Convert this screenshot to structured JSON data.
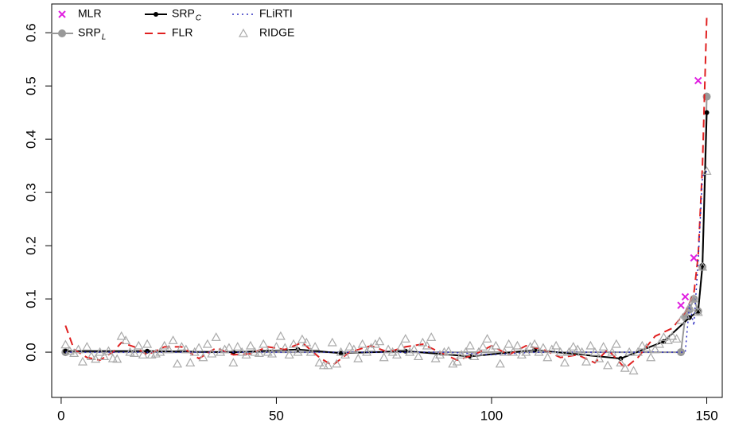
{
  "chart_data": {
    "type": "line",
    "xlim": [
      -2.2,
      153.6
    ],
    "ylim": [
      -0.085,
      0.654
    ],
    "xticks": [
      0,
      50,
      100,
      150
    ],
    "yticks": [
      {
        "value": 0,
        "label": "0.0"
      },
      0.1,
      0.2,
      0.3,
      0.4,
      0.5,
      0.6
    ],
    "series": [
      {
        "name": "MLR",
        "color": "#e020e0",
        "line": "none",
        "marker": "x",
        "x": [
          144,
          145,
          147,
          148
        ],
        "values": [
          0.088,
          0.104,
          0.177,
          0.51
        ]
      },
      {
        "name": "SRP",
        "subscript": "L",
        "color": "#999999",
        "line": "solid",
        "marker": "circle",
        "x": [
          1,
          144,
          145,
          146,
          147,
          148,
          149,
          150
        ],
        "values": [
          0,
          0,
          0.067,
          0.08,
          0.1,
          0.077,
          0.16,
          0.48
        ]
      },
      {
        "name": "SRP",
        "subscript": "C",
        "color": "#000000",
        "line": "solid",
        "marker": "dot",
        "x": [
          1,
          20,
          40,
          55,
          65,
          80,
          95,
          110,
          130,
          140,
          146,
          148,
          149,
          150
        ],
        "values": [
          0.002,
          0.002,
          0,
          0.005,
          -0.002,
          0.002,
          -0.008,
          0.004,
          -0.012,
          0.02,
          0.065,
          0.077,
          0.163,
          0.45
        ]
      },
      {
        "name": "FLR",
        "color": "#e02020",
        "line": "dashed",
        "marker": "none",
        "x": [
          1,
          3,
          6,
          9,
          12,
          14,
          17,
          20,
          24,
          28,
          32,
          36,
          40,
          44,
          48,
          52,
          56,
          60,
          63,
          67,
          72,
          76,
          80,
          84,
          88,
          92,
          96,
          100,
          104,
          108,
          112,
          116,
          120,
          124,
          127,
          131,
          134,
          138,
          142,
          145,
          147,
          148,
          149,
          150
        ],
        "values": [
          0.05,
          0.005,
          -0.01,
          -0.015,
          0,
          0.018,
          0.01,
          -0.005,
          0.01,
          0.01,
          -0.012,
          0.008,
          -0.005,
          -0.003,
          0.01,
          0.005,
          0.018,
          -0.01,
          -0.025,
          0,
          0.012,
          0,
          0.01,
          0.015,
          0,
          -0.015,
          -0.005,
          0.012,
          -0.005,
          0.012,
          0.005,
          -0.01,
          -0.005,
          -0.02,
          0.005,
          -0.03,
          -0.01,
          0.03,
          0.045,
          0.075,
          0.11,
          0.18,
          0.35,
          0.63
        ]
      },
      {
        "name": "FLiRTI",
        "color": "#3030c0",
        "line": "dotted",
        "marker": "none",
        "x": [
          1,
          90,
          100,
          110,
          145,
          146,
          147,
          148,
          149,
          150
        ],
        "values": [
          0,
          0,
          -0.005,
          0,
          0,
          0.09,
          0.05,
          0.17,
          0.33,
          0.34
        ]
      },
      {
        "name": "RIDGE",
        "color": "#aaaaaa",
        "line": "none",
        "marker": "triangle",
        "x": [
          1,
          2,
          3,
          4,
          5,
          6,
          7,
          8,
          9,
          10,
          11,
          12,
          13,
          14,
          15,
          16,
          17,
          18,
          19,
          20,
          21,
          22,
          23,
          24,
          25,
          26,
          27,
          28,
          29,
          30,
          31,
          32,
          33,
          34,
          35,
          36,
          37,
          38,
          39,
          40,
          41,
          42,
          43,
          44,
          45,
          46,
          47,
          48,
          49,
          50,
          51,
          52,
          53,
          54,
          55,
          56,
          57,
          58,
          59,
          60,
          61,
          62,
          63,
          64,
          65,
          66,
          67,
          68,
          69,
          70,
          71,
          72,
          73,
          74,
          75,
          76,
          77,
          78,
          79,
          80,
          81,
          82,
          83,
          84,
          85,
          86,
          87,
          88,
          89,
          90,
          91,
          92,
          93,
          94,
          95,
          96,
          97,
          98,
          99,
          100,
          101,
          102,
          103,
          104,
          105,
          106,
          107,
          108,
          109,
          110,
          111,
          112,
          113,
          114,
          115,
          116,
          117,
          118,
          119,
          120,
          121,
          122,
          123,
          124,
          125,
          126,
          127,
          128,
          129,
          130,
          131,
          132,
          133,
          134,
          135,
          136,
          137,
          138,
          139,
          140,
          141,
          142,
          143,
          144,
          145,
          146,
          147,
          148,
          149,
          150
        ],
        "values": [
          0.014,
          0.002,
          -0.002,
          0.005,
          -0.018,
          0.01,
          -0.008,
          -0.013,
          0.0,
          -0.008,
          0.002,
          -0.012,
          -0.013,
          0.03,
          0.022,
          0.0,
          -0.002,
          0.012,
          -0.005,
          0.015,
          -0.005,
          -0.003,
          0.0,
          0.012,
          0.005,
          0.022,
          -0.022,
          0.01,
          0.005,
          -0.02,
          0.0,
          0.008,
          -0.01,
          0.015,
          -0.003,
          0.028,
          0.0,
          0.005,
          0.008,
          -0.02,
          0.01,
          0.0,
          -0.005,
          0.012,
          0.0,
          -0.002,
          0.015,
          0.0,
          -0.003,
          0.01,
          0.03,
          0.008,
          -0.005,
          0.015,
          0.0,
          0.024,
          0.018,
          0.0,
          0.01,
          -0.02,
          -0.025,
          -0.025,
          0.018,
          -0.022,
          0.0,
          -0.005,
          0.01,
          0.005,
          -0.012,
          0.015,
          0.0,
          0.008,
          0.015,
          0.02,
          -0.01,
          0.005,
          0.0,
          -0.005,
          0.01,
          0.025,
          0.0,
          0.005,
          -0.008,
          0.018,
          0.012,
          0.028,
          -0.012,
          -0.005,
          0.0,
          0.002,
          -0.022,
          -0.018,
          -0.005,
          0.0,
          0.012,
          -0.008,
          0.0,
          0.01,
          0.025,
          0.005,
          0.012,
          -0.022,
          0.0,
          0.015,
          0.0,
          0.012,
          -0.005,
          0.0,
          0.01,
          0.015,
          0.0,
          0.008,
          -0.01,
          0.005,
          0.012,
          0.0,
          -0.02,
          0.0,
          0.01,
          0.005,
          0.0,
          -0.018,
          0.012,
          0.0,
          -0.012,
          0.01,
          -0.025,
          0.0,
          0.015,
          -0.02,
          -0.03,
          0.0,
          -0.035,
          0.0,
          0.012,
          0.008,
          -0.01,
          0.005,
          0.015,
          0.028,
          0.022,
          0.03,
          0.025,
          0.06,
          0.07,
          0.085,
          0.1,
          0.075,
          0.16,
          0.34
        ]
      }
    ]
  }
}
